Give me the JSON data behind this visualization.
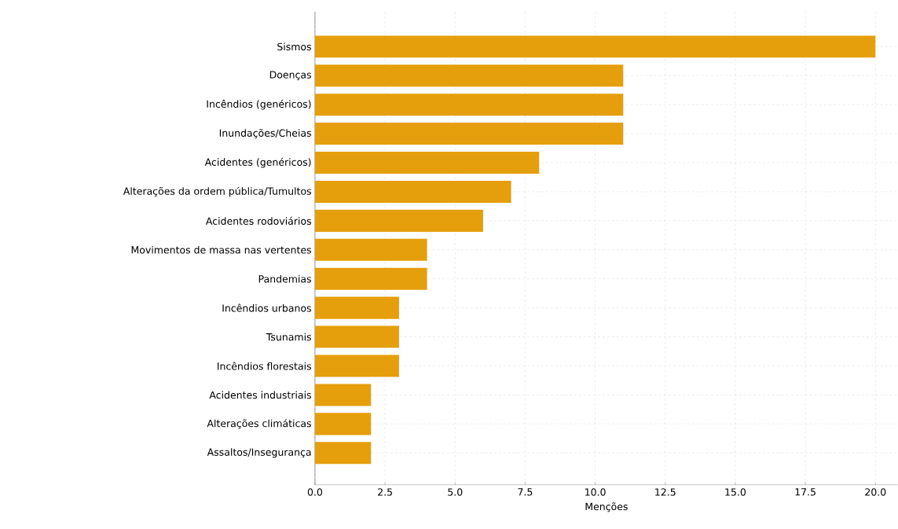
{
  "chart_data": {
    "type": "bar",
    "orientation": "horizontal",
    "xlabel": "Menções",
    "categories": [
      "Sismos",
      "Doenças",
      "Incêndios (genéricos)",
      "Inundações/Cheias",
      "Acidentes (genéricos)",
      "Alterações da ordem pública/Tumultos",
      "Acidentes rodoviários",
      "Movimentos de massa nas vertentes",
      "Pandemias",
      "Incêndios urbanos",
      "Tsunamis",
      "Incêndios florestais",
      "Acidentes industriais",
      "Alterações climáticas",
      "Assaltos/Insegurança"
    ],
    "values": [
      20,
      11,
      11,
      11,
      8,
      7,
      6,
      4,
      4,
      3,
      3,
      3,
      2,
      2,
      2
    ],
    "color": "#e59f0c",
    "xlim": [
      0,
      20.8
    ],
    "xticks": [
      {
        "value": 0,
        "label": "0.0"
      },
      {
        "value": 2.5,
        "label": "2.5"
      },
      {
        "value": 5,
        "label": "5.0"
      },
      {
        "value": 7.5,
        "label": "7.5"
      },
      {
        "value": 10,
        "label": "10.0"
      },
      {
        "value": 12.5,
        "label": "12.5"
      },
      {
        "value": 15,
        "label": "15.0"
      },
      {
        "value": 17.5,
        "label": "17.5"
      },
      {
        "value": 20,
        "label": "20.0"
      }
    ],
    "grid": true
  }
}
